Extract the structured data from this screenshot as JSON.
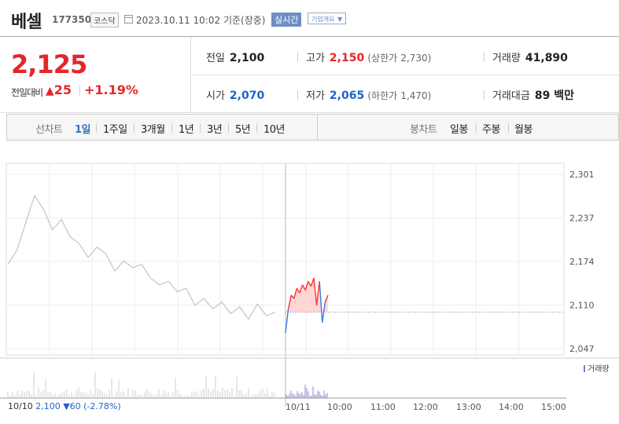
{
  "header": {
    "name": "베셀",
    "code": "177350",
    "market": "코스닥",
    "datetime": "2023.10.11 10:02",
    "basis": "기준(장중)",
    "realtime": "실시간",
    "overview": "기업개요"
  },
  "quote": {
    "price": "2,125",
    "change_label": "전일대비",
    "change": "25",
    "change_pct": "+1.19%",
    "prev_label": "전일",
    "prev": "2,100",
    "high_label": "고가",
    "high": "2,150",
    "upper_label": "(상한가",
    "upper": "2,730",
    "upper_close": ")",
    "volume_label": "거래량",
    "volume": "41,890",
    "open_label": "시가",
    "open": "2,070",
    "low_label": "저가",
    "low": "2,065",
    "lower_label": "(하한가",
    "lower": "1,470",
    "lower_close": ")",
    "amount_label": "거래대금",
    "amount": "89 백만"
  },
  "tabs": {
    "line_label": "선차트",
    "line": [
      "1일",
      "1주일",
      "3개월",
      "1년",
      "3년",
      "5년",
      "10년"
    ],
    "candle_label": "봉차트",
    "candle": [
      "일봉",
      "주봉",
      "월봉"
    ]
  },
  "chart_data": {
    "type": "line",
    "y_ticks": [
      "2,301",
      "2,237",
      "2,174",
      "2,110",
      "2,047"
    ],
    "ylim": [
      2047,
      2301
    ],
    "x_ticks": [
      "10/10",
      "10/11",
      "10:00",
      "11:00",
      "12:00",
      "13:00",
      "14:00",
      "15:00"
    ],
    "prev_close": 2100,
    "volume_label": "거래량",
    "footer": {
      "date": "10/10",
      "close": "2,100",
      "change": "▼60",
      "pct": "(-2.78%)"
    },
    "series": [
      {
        "values": [
          2170,
          2190,
          2230,
          2270,
          2250,
          2220,
          2235,
          2210,
          2200,
          2180,
          2195,
          2185,
          2160,
          2175,
          2165,
          2170,
          2150,
          2140,
          2145,
          2130,
          2135,
          2110,
          2120,
          2105,
          2115,
          2098,
          2108,
          2090,
          2112,
          2095,
          2100
        ]
      },
      {
        "values": [
          2070,
          2105,
          2125,
          2120,
          2135,
          2128,
          2140,
          2132,
          2145,
          2138,
          2150,
          2110,
          2145,
          2085,
          2115,
          2125
        ]
      }
    ],
    "colors": {
      "prev": "#c8c8c8",
      "up": "#ff3333",
      "down": "#3a7bd5",
      "fill": "#ffd6d6"
    }
  }
}
